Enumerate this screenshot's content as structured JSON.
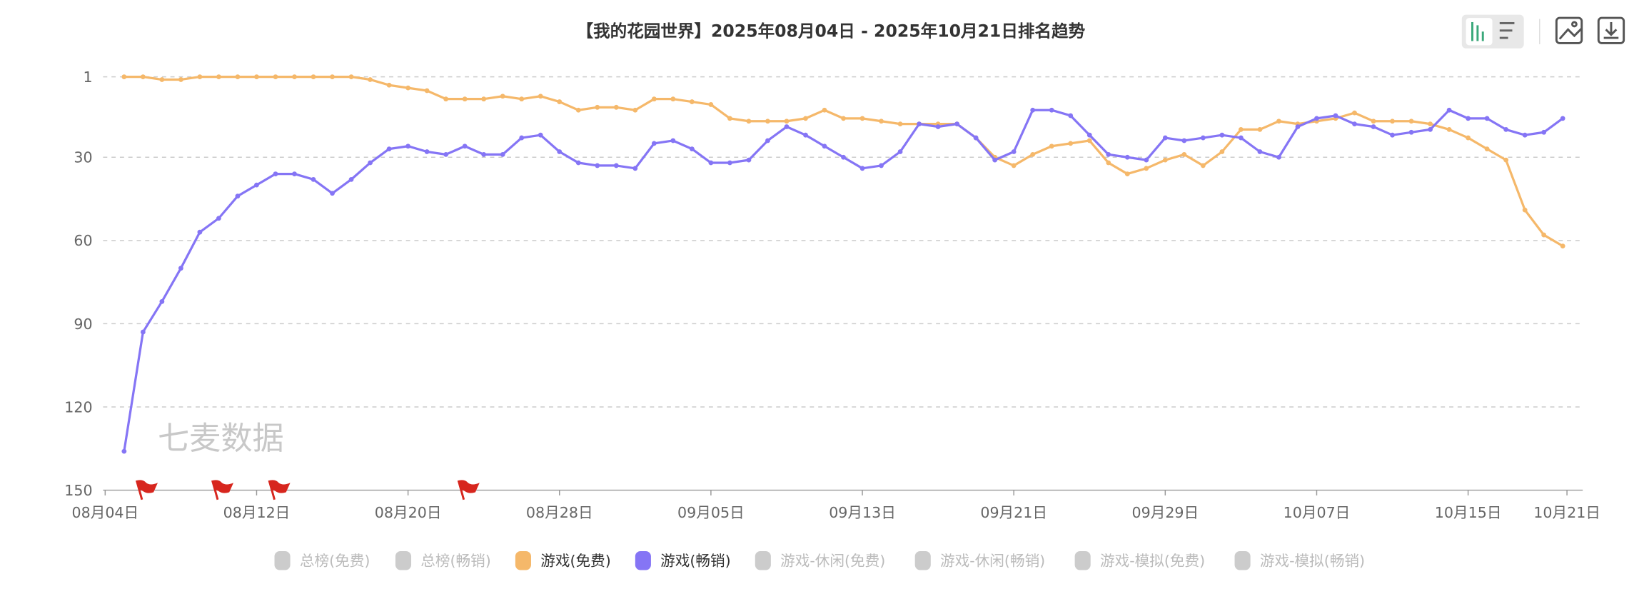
{
  "toolbar": {
    "icons": [
      "bar-chart-icon",
      "list-icon",
      "image-icon",
      "download-icon"
    ]
  },
  "watermark": "七麦数据",
  "chart_data": {
    "type": "line",
    "title": "【我的花园世界】2025年08月04日 - 2025年10月21日排名趋势",
    "xlabel": "",
    "ylabel": "",
    "y_inverted": true,
    "ylim": [
      1,
      150
    ],
    "yticks": [
      "1",
      "30",
      "60",
      "90",
      "120",
      "150"
    ],
    "ytick_values": [
      1,
      30,
      60,
      90,
      120,
      150
    ],
    "xticks": [
      "08月04日",
      "08月12日",
      "08月20日",
      "08月28日",
      "09月05日",
      "09月13日",
      "09月21日",
      "09月29日",
      "10月07日",
      "10月15日",
      "10月21日"
    ],
    "xtick_day_index": [
      0,
      8,
      16,
      24,
      32,
      40,
      48,
      56,
      64,
      72,
      78
    ],
    "x_start": "08月05日",
    "x_end": "10月20日",
    "grid": true,
    "legend_position": "bottom",
    "legend": [
      {
        "name": "总榜(免费)",
        "active": false,
        "color": "#cccccc"
      },
      {
        "name": "总榜(畅销)",
        "active": false,
        "color": "#cccccc"
      },
      {
        "name": "游戏(免费)",
        "active": true,
        "color": "#f5b86a"
      },
      {
        "name": "游戏(畅销)",
        "active": true,
        "color": "#8575f5"
      },
      {
        "name": "游戏-休闲(免费)",
        "active": false,
        "color": "#cccccc"
      },
      {
        "name": "游戏-休闲(畅销)",
        "active": false,
        "color": "#cccccc"
      },
      {
        "name": "游戏-模拟(免费)",
        "active": false,
        "color": "#cccccc"
      },
      {
        "name": "游戏-模拟(畅销)",
        "active": false,
        "color": "#cccccc"
      }
    ],
    "series": [
      {
        "name": "游戏(免费)",
        "color": "#f5b86a",
        "values": [
          1,
          1,
          2,
          2,
          1,
          1,
          1,
          1,
          1,
          1,
          1,
          1,
          1,
          2,
          4,
          5,
          6,
          9,
          9,
          9,
          8,
          9,
          8,
          10,
          13,
          12,
          12,
          13,
          9,
          9,
          10,
          11,
          16,
          17,
          17,
          17,
          16,
          13,
          16,
          16,
          17,
          18,
          18,
          18,
          18,
          23,
          30,
          33,
          29,
          26,
          25,
          24,
          32,
          36,
          34,
          31,
          29,
          33,
          28,
          20,
          20,
          17,
          18,
          17,
          16,
          14,
          17,
          17,
          17,
          18,
          20,
          23,
          27,
          31,
          49,
          58,
          62
        ]
      },
      {
        "name": "游戏(畅销)",
        "color": "#8575f5",
        "values": [
          136,
          93,
          82,
          70,
          57,
          52,
          44,
          40,
          36,
          36,
          38,
          43,
          38,
          32,
          27,
          26,
          28,
          29,
          26,
          29,
          29,
          23,
          22,
          28,
          32,
          33,
          33,
          34,
          25,
          24,
          27,
          32,
          32,
          31,
          24,
          19,
          22,
          26,
          30,
          34,
          33,
          28,
          18,
          19,
          18,
          23,
          31,
          28,
          13,
          13,
          15,
          22,
          29,
          30,
          31,
          23,
          24,
          23,
          22,
          23,
          28,
          30,
          19,
          16,
          15,
          18,
          19,
          22,
          21,
          20,
          13,
          16,
          16,
          20,
          22,
          21,
          16
        ]
      }
    ],
    "event_flags_day_index": [
      1,
      5,
      8,
      18
    ],
    "flag_color": "#d7261e"
  }
}
